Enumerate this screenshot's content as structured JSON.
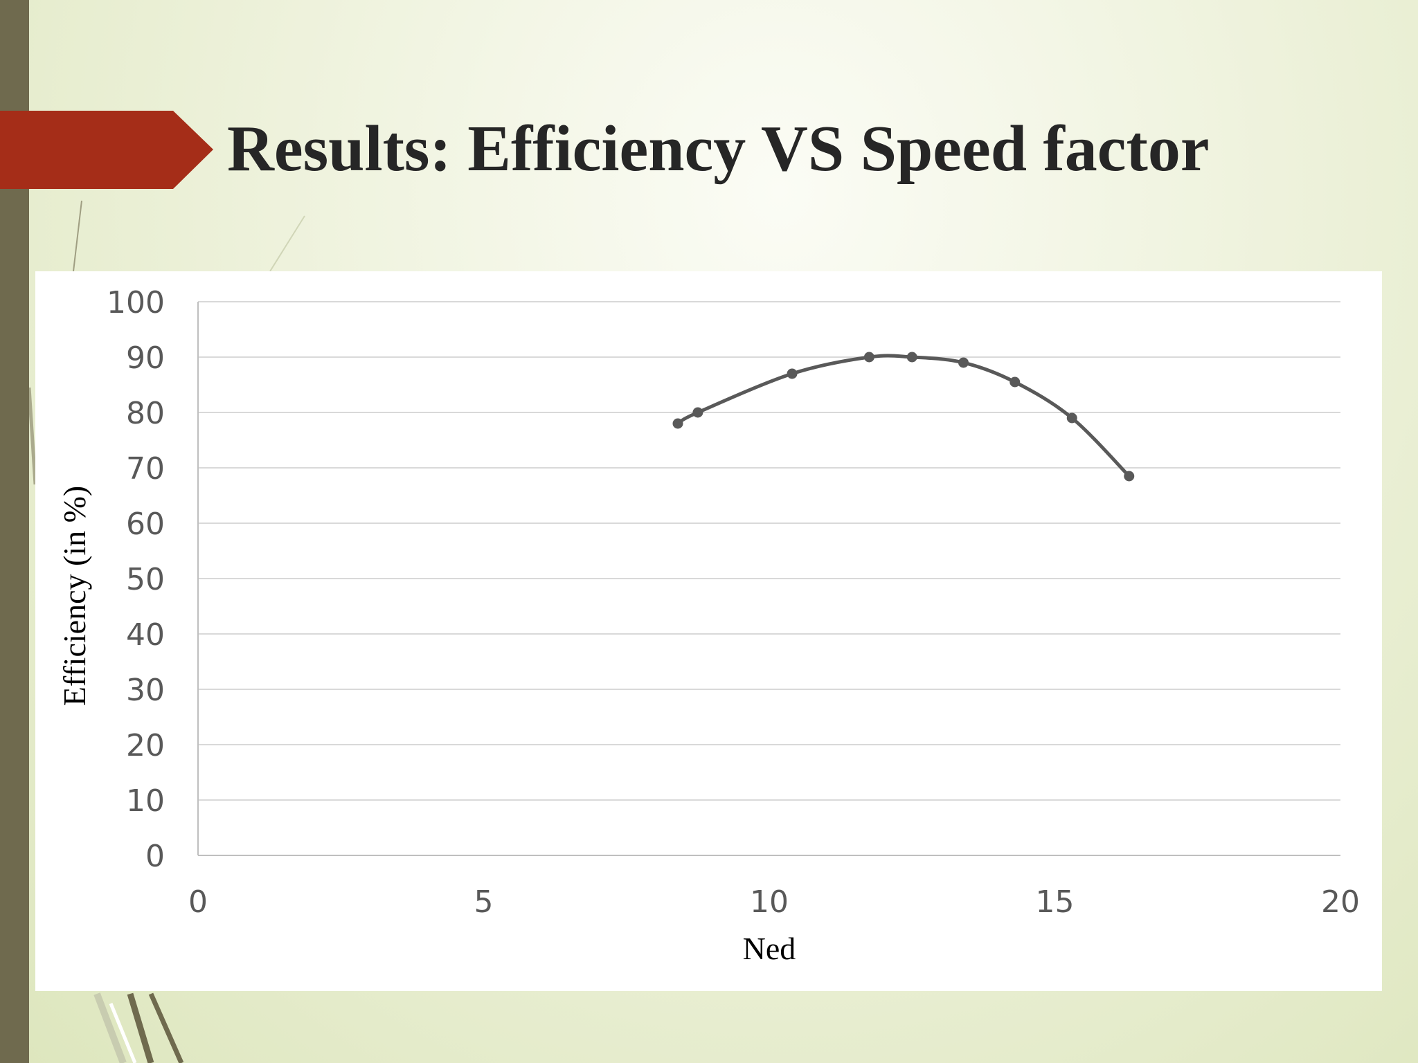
{
  "slide": {
    "title": "Results: Efficiency VS Speed factor"
  },
  "colors": {
    "accent_arrow": "#a52d18",
    "left_bar": "#6f6a4e",
    "series_line": "#595959"
  },
  "chart_data": {
    "type": "scatter",
    "xlabel": "Ned",
    "ylabel": "Efficiency (in %)",
    "xlim": [
      0,
      20
    ],
    "ylim": [
      0,
      100
    ],
    "x_ticks": [
      "0",
      "5",
      "10",
      "15",
      "20"
    ],
    "y_ticks": [
      "0",
      "10",
      "20",
      "30",
      "40",
      "50",
      "60",
      "70",
      "80",
      "90",
      "100"
    ],
    "grid": "horizontal",
    "legend": "none",
    "smooth_line": true,
    "markers": true,
    "series": [
      {
        "x": [
          8.4,
          8.75,
          10.4,
          11.75,
          12.5,
          13.4,
          14.3,
          15.3,
          16.3
        ],
        "y": [
          78,
          80,
          87,
          90,
          90,
          89,
          85.5,
          79,
          68.5
        ]
      }
    ]
  }
}
